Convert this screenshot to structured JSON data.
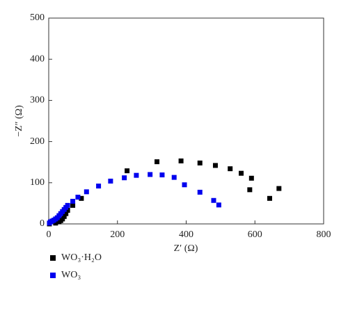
{
  "chart_data": {
    "type": "scatter",
    "xlabel": "Z′ (Ω)",
    "ylabel": "−Z″ (Ω)",
    "xlim": [
      0,
      800
    ],
    "xticks": [
      0,
      200,
      400,
      600,
      800
    ],
    "ylim": [
      0,
      500
    ],
    "yticks": [
      0,
      100,
      200,
      300,
      400,
      500
    ],
    "legend": "bottom-left",
    "series": [
      {
        "name": "WO₃·H₂O",
        "color": "#000000",
        "x": [
          2,
          20,
          30,
          35,
          40,
          45,
          50,
          55,
          70,
          95,
          228,
          315,
          385,
          440,
          485,
          528,
          560,
          590,
          585,
          643,
          670
        ],
        "values": [
          0,
          2,
          5,
          8,
          12,
          18,
          25,
          33,
          45,
          62,
          129,
          151,
          153,
          148,
          142,
          134,
          123,
          111,
          83,
          62,
          86
        ]
      },
      {
        "name": "WO₃",
        "color": "#0000ee",
        "x": [
          2,
          5,
          10,
          15,
          20,
          25,
          30,
          35,
          40,
          45,
          50,
          55,
          70,
          85,
          110,
          145,
          180,
          220,
          255,
          295,
          330,
          365,
          395,
          440,
          480,
          495
        ],
        "values": [
          2,
          5,
          7,
          9,
          12,
          15,
          20,
          25,
          30,
          35,
          40,
          45,
          55,
          65,
          78,
          92,
          104,
          112,
          118,
          120,
          119,
          113,
          95,
          77,
          57,
          46
        ]
      }
    ]
  }
}
